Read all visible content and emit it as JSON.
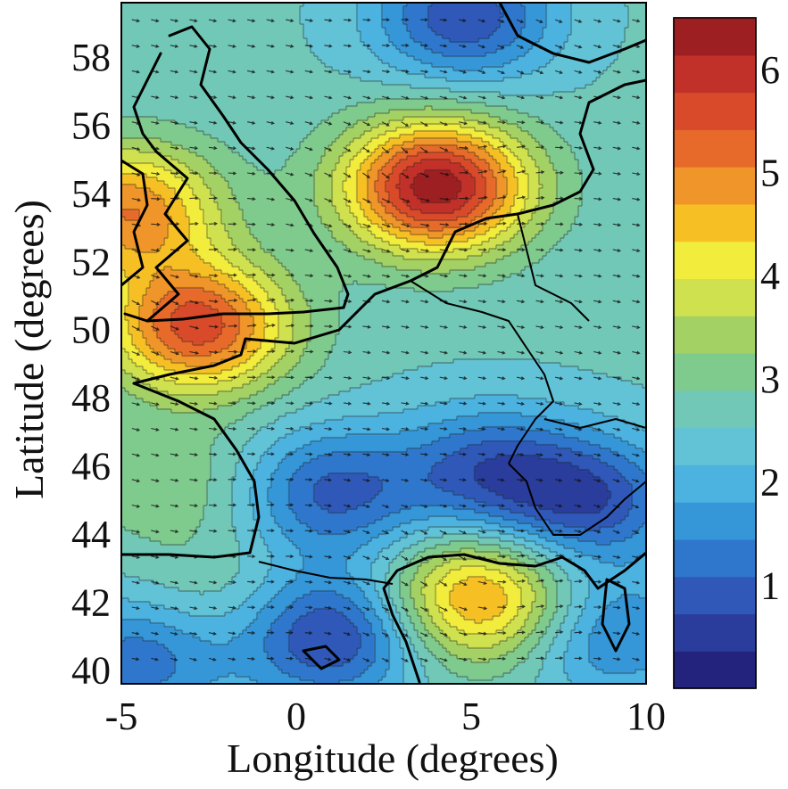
{
  "chart_data": {
    "type": "heatmap",
    "title": "",
    "xlabel": "Longitude (degrees)",
    "ylabel": "Latitude (degrees)",
    "xlim": [
      -5,
      10
    ],
    "ylim": [
      39.6,
      59.6
    ],
    "x_ticks": [
      "-5",
      "0",
      "5",
      "10"
    ],
    "x_tick_values": [
      -5,
      0,
      5,
      10
    ],
    "y_ticks": [
      "58",
      "56",
      "54",
      "52",
      "50",
      "48",
      "46",
      "44",
      "42",
      "40"
    ],
    "y_tick_values": [
      58,
      56,
      54,
      52,
      50,
      48,
      46,
      44,
      42,
      40
    ],
    "colorbar": {
      "range": [
        0,
        6.5
      ],
      "ticks": [
        "6",
        "5",
        "4",
        "3",
        "2",
        "1"
      ],
      "tick_values": [
        6,
        5,
        4,
        3,
        2,
        1
      ],
      "colors": [
        "#23237e",
        "#2a3c9c",
        "#2f58b8",
        "#2f77cc",
        "#3596d8",
        "#4cb2e0",
        "#62c2d6",
        "#71c8b6",
        "#7fca8d",
        "#a3d164",
        "#cfe14e",
        "#f2ec3d",
        "#f6c025",
        "#f09529",
        "#e76a2b",
        "#d94a2a",
        "#c2302a",
        "#9e1f22"
      ]
    },
    "field_features": [
      {
        "feature": "maximum",
        "lon": 4.0,
        "lat": 54.2,
        "value": 6.4
      },
      {
        "feature": "maximum",
        "lon": -2.8,
        "lat": 50.1,
        "value": 5.6
      },
      {
        "feature": "maximum",
        "lon": -4.8,
        "lat": 53.5,
        "value": 5.0
      },
      {
        "feature": "maximum",
        "lon": 5.2,
        "lat": 42.1,
        "value": 4.9
      },
      {
        "feature": "maximum",
        "lon": -3.5,
        "lat": 45.5,
        "value": 3.2
      },
      {
        "feature": "maximum",
        "lon": -2.2,
        "lat": 42.1,
        "value": 3.0
      },
      {
        "feature": "minimum",
        "lon": 1.0,
        "lat": 41.0,
        "value": 0.6
      },
      {
        "feature": "minimum",
        "lon": 4.8,
        "lat": 59.2,
        "value": 0.8
      },
      {
        "feature": "minimum",
        "lon": 8.5,
        "lat": 45.0,
        "value": 0.9
      },
      {
        "feature": "minimum",
        "lon": 1.0,
        "lat": 45.2,
        "value": 1.0
      },
      {
        "feature": "minimum",
        "lon": 5.5,
        "lat": 45.8,
        "value": 1.0
      },
      {
        "feature": "minimum",
        "lon": -4.5,
        "lat": 40.3,
        "value": 1.2
      },
      {
        "feature": "minimum",
        "lon": 9.0,
        "lat": 41.0,
        "value": 1.4
      }
    ],
    "overlay": "wind vectors and contour lines",
    "grid": false
  },
  "colors": {
    "coastline": "#000000",
    "contour": "#1a1a1a",
    "vector": "#111111"
  }
}
